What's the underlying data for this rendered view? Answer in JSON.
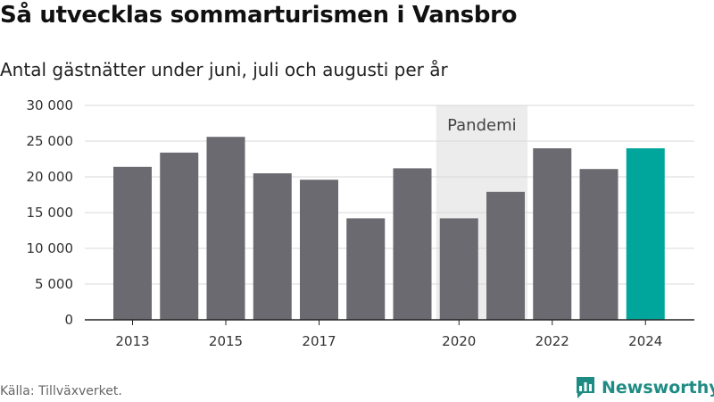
{
  "title": "Så utvecklas sommarturismen i Vansbro",
  "subtitle": "Antal gästnätter under juni, juli och augusti per år",
  "source": "Källa: Tillväxverket.",
  "brand": {
    "name": "Newsworthy",
    "icon": "newsworthy-logo-icon",
    "color": "#1f8c84"
  },
  "chart_data": {
    "type": "bar",
    "categories": [
      "2013",
      "2014",
      "2015",
      "2016",
      "2017",
      "2018",
      "2019",
      "2020",
      "2021",
      "2022",
      "2023",
      "2024"
    ],
    "values": [
      21400,
      23400,
      25600,
      20500,
      19600,
      14200,
      21200,
      14200,
      17900,
      24000,
      21100,
      24000
    ],
    "x_tick_labels": [
      "2013",
      "",
      "2015",
      "",
      "2017",
      "",
      "",
      "2020",
      "",
      "2022",
      "",
      "2024"
    ],
    "y_ticks": [
      0,
      5000,
      10000,
      15000,
      20000,
      25000,
      30000
    ],
    "y_tick_labels": [
      "0",
      "5 000",
      "10 000",
      "15 000",
      "20 000",
      "25 000",
      "30 000"
    ],
    "ylim": [
      0,
      30000
    ],
    "grid": true,
    "bar_color": "#6b6a70",
    "highlight_color": "#00a59b",
    "highlight_category": "2024",
    "annotation": {
      "label": "Pandemi",
      "from_category": "2020",
      "to_category": "2021",
      "band_color": "#ececec"
    }
  }
}
